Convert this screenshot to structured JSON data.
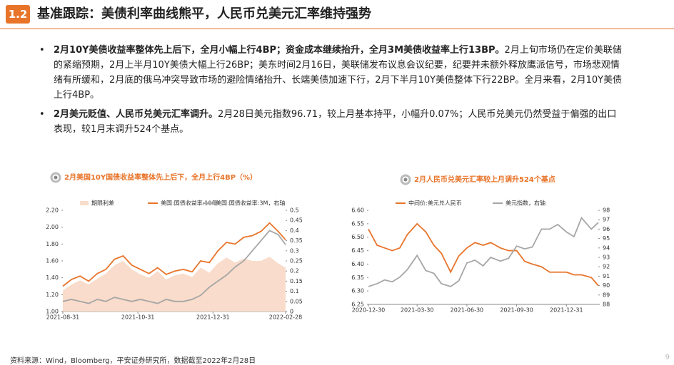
{
  "header": {
    "number": "1.2",
    "title": "基准跟踪：美债利率曲线熊平，人民币兑美元汇率维持强势"
  },
  "bullets": [
    {
      "bold": "2月10Y美债收益率整体先上后下，全月小幅上行4BP；资金成本继续抬升，全月3M美债收益率上行13BP。",
      "text": "2月上旬市场仍在定价美联储的紧缩预期，2月上半月10Y美债大幅上行26BP；美东时间2月16日，美联储发布议息会议纪要，纪要并未额外释放鹰派信号，市场悲观情绪有所缓和，2月底的俄乌冲突导致市场的避险情绪抬升、长端美债加速下行，2月下半月10Y美债整体下行22BP。全月来看，2月10Y美债上行4BP。"
    },
    {
      "bold": "2月美元贬值、人民币兑美元汇率调升。",
      "text": "2月28日美元指数96.71，较上月基本持平，小幅升0.07%；人民币兑美元仍然受益于偏强的出口表现，较1月末调升524个基点。"
    }
  ],
  "chart_data": [
    {
      "type": "line",
      "title": "2月美国10Y国债收益率整体先上后下，全月上行4BP（%）",
      "x": [
        "2021-08-31",
        "2021-09-07",
        "2021-09-14",
        "2021-09-21",
        "2021-09-28",
        "2021-10-05",
        "2021-10-12",
        "2021-10-19",
        "2021-10-26",
        "2021-11-02",
        "2021-11-09",
        "2021-11-16",
        "2021-11-23",
        "2021-11-30",
        "2021-12-07",
        "2021-12-14",
        "2021-12-21",
        "2021-12-28",
        "2022-01-04",
        "2022-01-11",
        "2022-01-18",
        "2022-01-25",
        "2022-02-01",
        "2022-02-08",
        "2022-02-15",
        "2022-02-22",
        "2022-02-28"
      ],
      "series": [
        {
          "name": "期限利差 ",
          "type": "area",
          "color": "#f9dccb",
          "values": [
            1.25,
            1.32,
            1.37,
            1.32,
            1.39,
            1.45,
            1.55,
            1.6,
            1.5,
            1.44,
            1.4,
            1.48,
            1.38,
            1.43,
            1.45,
            1.41,
            1.52,
            1.46,
            1.57,
            1.64,
            1.58,
            1.63,
            1.6,
            1.6,
            1.65,
            1.57,
            1.52
          ]
        },
        {
          "name": "美国:国债收益率:10年",
          "color": "#e8742a",
          "values": [
            1.3,
            1.38,
            1.42,
            1.36,
            1.45,
            1.5,
            1.62,
            1.66,
            1.55,
            1.5,
            1.45,
            1.52,
            1.44,
            1.48,
            1.5,
            1.47,
            1.6,
            1.58,
            1.72,
            1.82,
            1.8,
            1.88,
            1.9,
            1.95,
            2.05,
            1.95,
            1.85
          ]
        },
        {
          "name": "美国:国债收益率:3M，右轴",
          "color": "#a6a6a6",
          "axis": "y2",
          "values": [
            0.05,
            0.06,
            0.05,
            0.04,
            0.06,
            0.05,
            0.07,
            0.06,
            0.05,
            0.06,
            0.05,
            0.04,
            0.06,
            0.05,
            0.05,
            0.06,
            0.08,
            0.12,
            0.15,
            0.18,
            0.22,
            0.25,
            0.3,
            0.35,
            0.4,
            0.38,
            0.33
          ]
        }
      ],
      "xlim": [
        "2021-08-31",
        "2022-02-28"
      ],
      "xticks": [
        "2021-08-31",
        "2021-10-31",
        "2021-12-31",
        "2022-02-28"
      ],
      "ylim": [
        1.0,
        2.2
      ],
      "yticks": [
        {
          "value": 1.0,
          "label": "1.00"
        },
        {
          "value": 1.2,
          "label": "1.20"
        },
        {
          "value": 1.4,
          "label": "1.40"
        },
        {
          "value": 1.6,
          "label": "1.60"
        },
        {
          "value": 1.8,
          "label": "1.80"
        },
        {
          "value": 2.0,
          "label": "2.00"
        },
        {
          "value": 2.2,
          "label": "2.20"
        }
      ],
      "y2lim": [
        0,
        0.5
      ],
      "y2ticks": [
        0,
        0.05,
        0.1,
        0.15,
        0.2,
        0.25,
        0.3,
        0.35,
        0.4,
        0.45,
        0.5
      ]
    },
    {
      "type": "line",
      "title": "2月人民币兑美元汇率较上月调升524个基点",
      "x": [
        "2020-12-30",
        "2021-01-15",
        "2021-01-29",
        "2021-02-12",
        "2021-02-26",
        "2021-03-12",
        "2021-03-30",
        "2021-04-15",
        "2021-04-30",
        "2021-05-14",
        "2021-05-31",
        "2021-06-15",
        "2021-06-30",
        "2021-07-15",
        "2021-07-30",
        "2021-08-13",
        "2021-08-31",
        "2021-09-15",
        "2021-09-30",
        "2021-10-15",
        "2021-10-29",
        "2021-11-15",
        "2021-11-30",
        "2021-12-15",
        "2021-12-31",
        "2022-01-14",
        "2022-01-28",
        "2022-02-15",
        "2022-02-28"
      ],
      "series": [
        {
          "name": "中间价:美元兑人民币",
          "color": "#e8742a",
          "values": [
            6.53,
            6.47,
            6.46,
            6.45,
            6.46,
            6.51,
            6.55,
            6.52,
            6.47,
            6.44,
            6.37,
            6.43,
            6.46,
            6.48,
            6.47,
            6.48,
            6.46,
            6.45,
            6.45,
            6.41,
            6.4,
            6.39,
            6.37,
            6.37,
            6.37,
            6.36,
            6.36,
            6.35,
            6.32
          ]
        },
        {
          "name": "美元指数，右轴",
          "color": "#a6a6a6",
          "axis": "y2",
          "values": [
            89.9,
            90.2,
            90.6,
            90.4,
            90.9,
            91.7,
            93.2,
            91.6,
            91.3,
            90.2,
            89.9,
            90.5,
            92.4,
            92.7,
            92.1,
            93.0,
            92.6,
            92.9,
            94.2,
            93.9,
            94.1,
            96.0,
            96.0,
            96.5,
            95.7,
            95.2,
            97.2,
            96.0,
            96.7
          ]
        }
      ],
      "xlim": [
        "2020-12-30",
        "2022-02-28"
      ],
      "xticks": [
        "2020-12-30",
        "2021-03-30",
        "2021-06-30",
        "2021-09-30",
        "2021-12-31"
      ],
      "ylim": [
        6.25,
        6.6
      ],
      "yticks": [
        6.25,
        {
          "value": 6.3,
          "label": "6.30"
        },
        6.35,
        {
          "value": 6.4,
          "label": "6.40"
        },
        6.45,
        {
          "value": 6.5,
          "label": "6.50"
        },
        6.55,
        {
          "value": 6.6,
          "label": "6.60"
        }
      ],
      "y2lim": [
        88,
        98
      ],
      "y2ticks": [
        88,
        89,
        90,
        91,
        92,
        93,
        94,
        95,
        96,
        97,
        98
      ]
    }
  ],
  "source": "资料来源：Wind，Bloomberg，平安证券研究所，数据截至2022年2月28日",
  "page": "9"
}
